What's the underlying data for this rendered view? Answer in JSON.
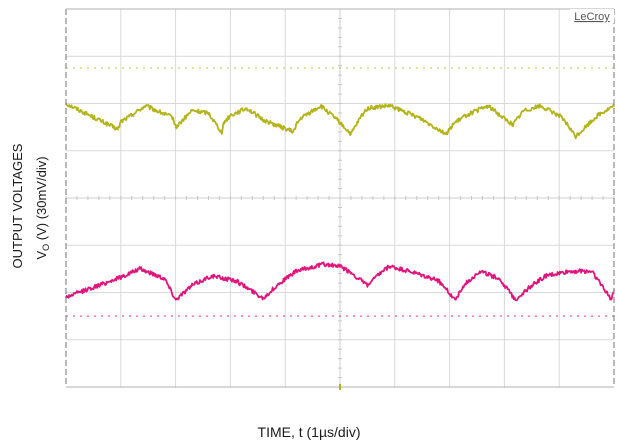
{
  "chart_data": {
    "type": "line",
    "ylabel_line1": "OUTPUT VOLTAGES",
    "ylabel_line2": "V",
    "ylabel_sub": "O",
    "ylabel_rest": " (V) (30mV/div)",
    "xlabel": "TIME, t (1µs/div)",
    "brand": "LeCroy",
    "divisions": {
      "x": 10,
      "y": 8
    },
    "grid": true,
    "x_units_per_div": "1µs",
    "y_units_per_div": "30mV",
    "series": [
      {
        "color": "#b3b31a",
        "ref_level_div": 6.75,
        "x": [
          0,
          0.95,
          1.0,
          1.15,
          1.45,
          1.95,
          2.0,
          2.05,
          2.3,
          2.6,
          2.85,
          2.88,
          3.0,
          3.3,
          3.6,
          4.15,
          4.2,
          4.3,
          4.65,
          4.95,
          5.2,
          5.4,
          5.5,
          5.9,
          6.45,
          6.95,
          7.05,
          7.3,
          7.7,
          8.15,
          8.35,
          8.65,
          9.0,
          9.15,
          9.3,
          9.7,
          9.85,
          10.0
        ],
        "y": [
          6.0,
          5.45,
          5.62,
          5.72,
          5.95,
          5.7,
          5.5,
          5.55,
          5.85,
          5.8,
          5.38,
          5.6,
          5.75,
          5.9,
          5.65,
          5.4,
          5.55,
          5.7,
          5.95,
          5.65,
          5.35,
          5.75,
          5.9,
          5.95,
          5.7,
          5.35,
          5.55,
          5.75,
          5.95,
          5.55,
          5.85,
          5.95,
          5.75,
          5.55,
          5.3,
          5.75,
          5.85,
          5.95
        ]
      },
      {
        "color": "#e0147a",
        "ref_level_div": 1.5,
        "x": [
          0,
          0.35,
          0.6,
          1.05,
          1.35,
          1.8,
          2.0,
          2.3,
          2.65,
          3.1,
          3.6,
          3.9,
          4.2,
          4.7,
          5.0,
          5.2,
          5.5,
          5.75,
          5.9,
          6.25,
          6.8,
          7.1,
          7.3,
          7.55,
          7.9,
          8.2,
          8.5,
          8.75,
          9.2,
          9.6,
          9.95,
          10.0
        ],
        "y": [
          1.9,
          2.05,
          2.15,
          2.35,
          2.5,
          2.3,
          1.85,
          2.15,
          2.35,
          2.25,
          1.88,
          2.2,
          2.45,
          2.6,
          2.55,
          2.42,
          2.15,
          2.42,
          2.55,
          2.45,
          2.25,
          1.85,
          2.2,
          2.45,
          2.3,
          1.85,
          2.15,
          2.35,
          2.45,
          2.45,
          1.85,
          2.05
        ]
      }
    ]
  }
}
